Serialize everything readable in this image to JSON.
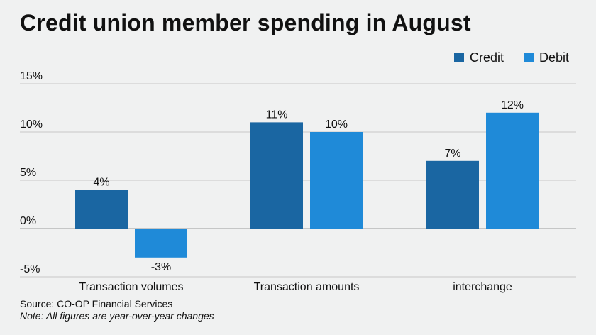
{
  "chart_data": {
    "type": "bar",
    "title": "Credit union member spending in August",
    "categories": [
      "Transaction volumes",
      "Transaction amounts",
      "interchange"
    ],
    "series": [
      {
        "name": "Credit",
        "color": "#1a66a2",
        "values": [
          4,
          11,
          7
        ],
        "labels": [
          "4%",
          "11%",
          "7%"
        ]
      },
      {
        "name": "Debit",
        "color": "#1f8ad8",
        "values": [
          -3,
          10,
          12
        ],
        "labels": [
          "-3%",
          "10%",
          "12%"
        ]
      }
    ],
    "yticks": [
      {
        "value": 15,
        "label": "15%"
      },
      {
        "value": 10,
        "label": "10%"
      },
      {
        "value": 5,
        "label": "5%"
      },
      {
        "value": 0,
        "label": "0%"
      },
      {
        "value": -5,
        "label": "-5%"
      }
    ],
    "ylim": [
      -5,
      15
    ],
    "grid": true,
    "legend_position": "top-right",
    "xlabel": "",
    "ylabel": ""
  },
  "footer": {
    "source": "Source: CO-OP Financial Services",
    "note": "Note: All figures are year-over-year changes"
  }
}
